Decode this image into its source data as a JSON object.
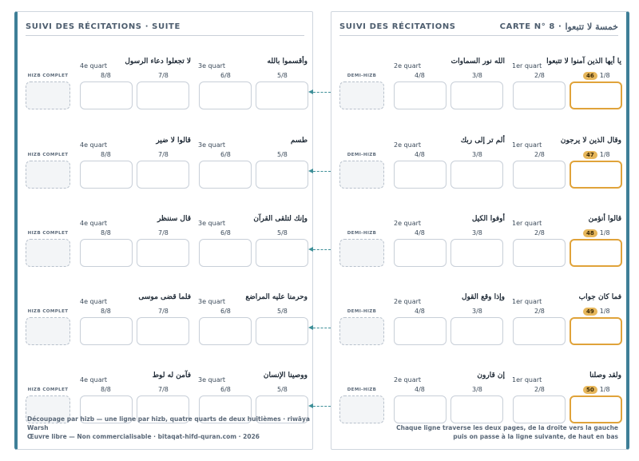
{
  "left_page": {
    "title": "SUIVI DES RÉCITATIONS · SUITE",
    "footer_line1": "Découpage par hizb — une ligne par hizb, quatre quarts de deux huitièmes · riwāya Warsh",
    "footer_line2": "Œuvre libre — Non commercialisable · bitaqat-hifd-quran.com · 2026",
    "rows": [
      {
        "side_label": "HIZB COMPLET",
        "q4": "4e quart",
        "q3": "3e quart",
        "n8": "8/8",
        "n7": "7/8",
        "n6": "6/8",
        "n5": "5/8",
        "ar7": "لا تجعلوا دعاء الرسول",
        "ar5": "وأقسموا بالله"
      },
      {
        "side_label": "HIZB COMPLET",
        "q4": "4e quart",
        "q3": "3e quart",
        "n8": "8/8",
        "n7": "7/8",
        "n6": "6/8",
        "n5": "5/8",
        "ar7": "قالوا لا ضير",
        "ar5": "طسم"
      },
      {
        "side_label": "HIZB COMPLET",
        "q4": "4e quart",
        "q3": "3e quart",
        "n8": "8/8",
        "n7": "7/8",
        "n6": "6/8",
        "n5": "5/8",
        "ar7": "قال سننظر",
        "ar5": "وإنك لتلقى القرآن"
      },
      {
        "side_label": "HIZB COMPLET",
        "q4": "4e quart",
        "q3": "3e quart",
        "n8": "8/8",
        "n7": "7/8",
        "n6": "6/8",
        "n5": "5/8",
        "ar7": "فلما قضى موسى",
        "ar5": "وحرمنا عليه المراضع"
      },
      {
        "side_label": "HIZB COMPLET",
        "q4": "4e quart",
        "q3": "3e quart",
        "n8": "8/8",
        "n7": "7/8",
        "n6": "6/8",
        "n5": "5/8",
        "ar7": "فآمن له لوط",
        "ar5": "ووصينا الإنسان"
      }
    ]
  },
  "right_page": {
    "title": "SUIVI DES RÉCITATIONS",
    "card_prefix": "CARTE N° 8 ·",
    "card_arabic": "خمسة لا تتبعوا",
    "footer_line1": "Chaque ligne traverse les deux pages, de la droite vers la gauche",
    "footer_line2": "puis on passe à la ligne suivante, de haut en bas",
    "rows": [
      {
        "side_label": "DEMI-HIZB",
        "q2": "2e quart",
        "q1": "1er quart",
        "n4": "4/8",
        "n3": "3/8",
        "n2": "2/8",
        "n1": "1/8",
        "badge": "46",
        "ar3": "الله نور السماوات",
        "ar1": "يا أيها الذين آمنوا لا تتبعوا"
      },
      {
        "side_label": "DEMI-HIZB",
        "q2": "2e quart",
        "q1": "1er quart",
        "n4": "4/8",
        "n3": "3/8",
        "n2": "2/8",
        "n1": "1/8",
        "badge": "47",
        "ar3": "ألم تر إلى ربك",
        "ar1": "وقال الذين لا يرجون"
      },
      {
        "side_label": "DEMI-HIZB",
        "q2": "2e quart",
        "q1": "1er quart",
        "n4": "4/8",
        "n3": "3/8",
        "n2": "2/8",
        "n1": "1/8",
        "badge": "48",
        "ar3": "أوفوا الكيل",
        "ar1": "قالوا أنؤمن"
      },
      {
        "side_label": "DEMI-HIZB",
        "q2": "2e quart",
        "q1": "1er quart",
        "n4": "4/8",
        "n3": "3/8",
        "n2": "2/8",
        "n1": "1/8",
        "badge": "49",
        "ar3": "وإذا وقع القول",
        "ar1": "فما كان جواب"
      },
      {
        "side_label": "DEMI-HIZB",
        "q2": "2e quart",
        "q1": "1er quart",
        "n4": "4/8",
        "n3": "3/8",
        "n2": "2/8",
        "n1": "1/8",
        "badge": "50",
        "ar3": "إن قارون",
        "ar1": "ولقد وصلنا"
      }
    ]
  },
  "colors": {
    "accent": "#3e7f97",
    "highlight": "#e0a33a",
    "badge": "#e6b65a"
  }
}
